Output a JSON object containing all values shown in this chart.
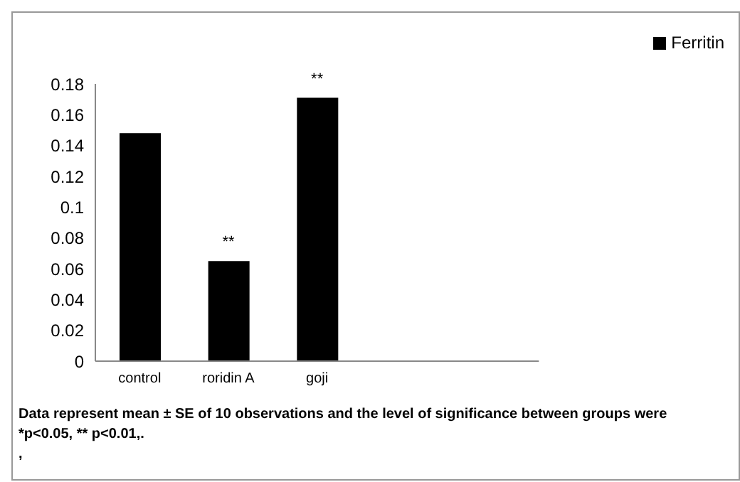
{
  "chart_data": {
    "type": "bar",
    "categories": [
      "control",
      "roridin A",
      "goji",
      null,
      null
    ],
    "series": [
      {
        "name": "Ferritin",
        "color": "#000000",
        "values": [
          0.148,
          0.065,
          0.171,
          null,
          null
        ]
      }
    ],
    "ylim": [
      0,
      0.18
    ],
    "yticks": [
      0,
      0.02,
      0.04,
      0.06,
      0.08,
      0.1,
      0.12,
      0.14,
      0.16,
      0.18
    ],
    "grid": false,
    "legend": "top right",
    "annotations": [
      {
        "text": "**",
        "x": "roridin A",
        "y": 0.065
      },
      {
        "text": "**",
        "x": "goji",
        "y": 0.171
      },
      "Data represent  mean ± SE of 10 observations and the level of significance between groups were *p<0.05, ** p<0.01,.",
      ","
    ]
  }
}
